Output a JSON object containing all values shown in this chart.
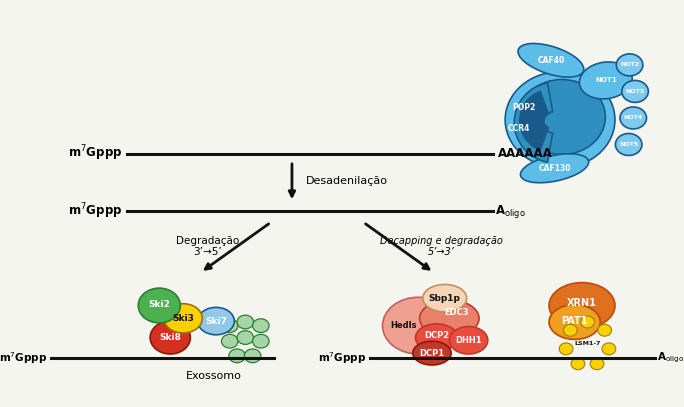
{
  "bg_color": "#f5f5f0",
  "desadenilacao": "Desadenilação",
  "degradacao_35_line1": "Degradação",
  "degradacao_35_line2": "3’→5’",
  "decapping_line1": "Decapping e degradação",
  "decapping_line2": "5’→3’",
  "exossomo": "Exossomo",
  "ccr4not_labels": [
    "CAF40",
    "NOT1",
    "NOT2",
    "NOT3",
    "NOT4",
    "NOT5",
    "CCR4",
    "POP2",
    "CAF130"
  ],
  "ski_labels": [
    "Ski2",
    "Ski3",
    "Ski7",
    "Ski8"
  ],
  "decap_labels": [
    "Sbp1p",
    "Hedls",
    "EDC3",
    "DCP2",
    "DCP1",
    "DHH1"
  ],
  "pat_labels": [
    "XRN1",
    "PAT1",
    "LSM1-7"
  ],
  "BLUE_DARK": "#1a5a8a",
  "BLUE_MID": "#2e8fc0",
  "BLUE_LIGHT": "#5bbde8",
  "BLUE_RING": "#7dcaee",
  "RED_DARK": "#c0392b",
  "RED_MID": "#e74c3c",
  "RED_LIGHT": "#e8806a",
  "SALMON": "#f0a090",
  "PEACH": "#f5d5b5",
  "ORANGE_DARK": "#bf4f08",
  "ORANGE_MID": "#e07020",
  "ORANGE_LT": "#f0a020",
  "GREEN_DARK": "#2e7d32",
  "GREEN_MID": "#4caf50",
  "GREEN_LIGHT": "#a5d6a7",
  "YELLOW": "#f9d000",
  "BLUE_SKI": "#90c8e8",
  "WHITE": "#ffffff",
  "BLACK": "#111111"
}
